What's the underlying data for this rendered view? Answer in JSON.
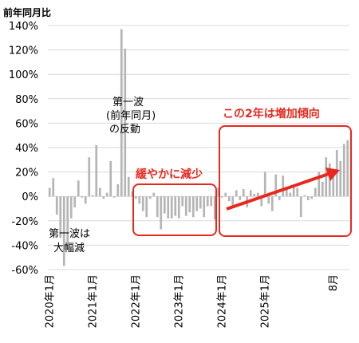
{
  "chart_data": {
    "type": "bar",
    "ylabel": "前年同月比",
    "ylim": [
      -60,
      140
    ],
    "yticks": [
      "140%",
      "120%",
      "100%",
      "80%",
      "60%",
      "40%",
      "20%",
      "0%",
      "-20%",
      "-40%",
      "-60%"
    ],
    "x_tick_labels": [
      "2020年1月",
      "2021年1月",
      "2022年1月",
      "2023年1月",
      "2024年1月",
      "2025年1月",
      "8月"
    ],
    "bar_color": "#b5b5b5",
    "highlight_color": "#e8281e",
    "grid": true,
    "series": [
      {
        "values": [
          7,
          15,
          -15,
          -34,
          -57,
          -43,
          -18,
          -9,
          13,
          -1,
          -6,
          32,
          1,
          42,
          7,
          -2,
          3,
          29,
          -1,
          10,
          137,
          121,
          16,
          4,
          -2,
          -6,
          -12,
          -17,
          -2,
          3,
          -17,
          -27,
          -14,
          -18,
          -18,
          -16,
          -18,
          -8,
          -16,
          -13,
          -17,
          -12,
          -10,
          -17,
          -8,
          -8,
          -19,
          7,
          -1,
          3,
          -4,
          -8,
          5,
          -3,
          6,
          -9,
          5,
          2,
          3,
          -8,
          20,
          -6,
          -12,
          18,
          -3,
          17,
          8,
          3,
          8,
          7,
          -17,
          1,
          -3,
          -2,
          7,
          20,
          12,
          32,
          27,
          20,
          38,
          29,
          43,
          46
        ]
      }
    ],
    "annotations": {
      "first_wave_drop": [
        "第一波は",
        "大幅減"
      ],
      "rebound": [
        "第一波",
        "(前年同月)",
        "の反動"
      ],
      "slow_decline": "緩やかに減少",
      "increasing_trend": "この2年は増加傾向"
    }
  }
}
